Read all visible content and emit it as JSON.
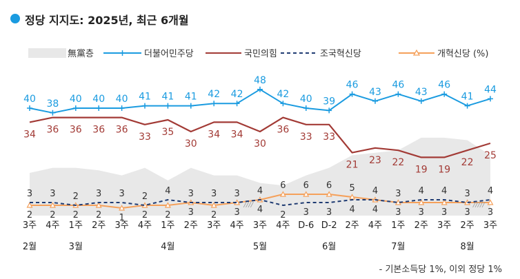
{
  "title": "정당 지지도: 2025년, 최근 6개월",
  "footnote": "- 기본소득당 1%, 이외 정당 1%",
  "chart_data": {
    "type": "line",
    "unit": "(%)",
    "categories": [
      "2월 3주",
      "2월 4주",
      "3월 1주",
      "3월 2주",
      "3월 3주",
      "3월 4주",
      "4월 1주",
      "4월 2주",
      "4월 3주",
      "4월 4주",
      "5월 3주",
      "5월 4주",
      "D-6",
      "D-2",
      "6월 2주",
      "6월 4주",
      "7월 1주",
      "7월 2주",
      "7월 3주",
      "8월 2주",
      "8월 3주"
    ],
    "x_labels": [
      "3주",
      "4주",
      "1주",
      "2주",
      "3주",
      "4주",
      "1주",
      "2주",
      "3주",
      "4주",
      "3주",
      "4주",
      "D-6",
      "D-2",
      "2주",
      "4주",
      "1주",
      "2주",
      "3주",
      "2주",
      "3주"
    ],
    "month_labels": [
      {
        "label": "2월",
        "index": 0
      },
      {
        "label": "3월",
        "index": 2
      },
      {
        "label": "4월",
        "index": 6
      },
      {
        "label": "5월",
        "index": 10
      },
      {
        "label": "6월",
        "index": 13
      },
      {
        "label": "7월",
        "index": 16
      },
      {
        "label": "8월",
        "index": 19
      }
    ],
    "series": [
      {
        "name": "더불어민주당",
        "color": "#1a9be0",
        "values": [
          40,
          38,
          40,
          40,
          40,
          41,
          41,
          41,
          42,
          42,
          48,
          42,
          40,
          39,
          46,
          43,
          46,
          43,
          46,
          41,
          44
        ]
      },
      {
        "name": "국민의힘",
        "color": "#a23a35",
        "values": [
          34,
          36,
          36,
          36,
          36,
          33,
          35,
          30,
          34,
          34,
          30,
          36,
          33,
          33,
          21,
          23,
          22,
          19,
          19,
          22,
          25
        ]
      },
      {
        "name": "조국혁신당",
        "color": "#1f3b72",
        "values": [
          3,
          3,
          2,
          3,
          3,
          2,
          4,
          3,
          3,
          3,
          4,
          2,
          3,
          3,
          4,
          4,
          3,
          4,
          4,
          3,
          4
        ]
      },
      {
        "name": "개혁신당",
        "color": "#f5a05a",
        "values": [
          2,
          2,
          2,
          2,
          1,
          2,
          2,
          3,
          2,
          3,
          4,
          6,
          6,
          6,
          5,
          4,
          3,
          3,
          3,
          3,
          3
        ]
      },
      {
        "name": "無黨층",
        "color": "#e8e8e8",
        "values": [
          17,
          19,
          19,
          18,
          16,
          19,
          14,
          19,
          16,
          16,
          13,
          12,
          16,
          19,
          24,
          25,
          26,
          31,
          31,
          30,
          24
        ]
      }
    ],
    "legend_labels": [
      "無黨층",
      "더불어민주당",
      "국민의힘",
      "조국혁신당",
      "개혁신당 (%)"
    ],
    "break_markers": [
      {
        "between": [
          9,
          10
        ],
        "text": "////"
      },
      {
        "between": [
          19,
          20
        ],
        "text": "/////"
      }
    ],
    "legend_position": "top",
    "grid": false
  },
  "colors": {
    "title_dot": "#1a9be0",
    "area": "#e8e8e8",
    "blue": "#1a9be0",
    "red": "#a23a35",
    "navy": "#1f3b72",
    "orange": "#f5a05a"
  }
}
